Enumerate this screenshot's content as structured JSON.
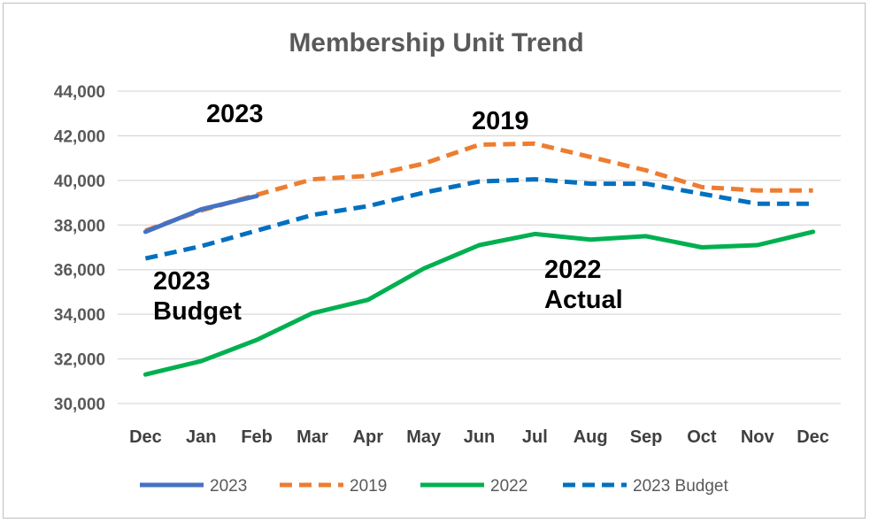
{
  "chart_data": {
    "type": "line",
    "title": "Membership Unit Trend",
    "xlabel": "",
    "ylabel": "",
    "ylim": [
      30000,
      44000
    ],
    "y_ticks": [
      "30,000",
      "32,000",
      "34,000",
      "36,000",
      "38,000",
      "40,000",
      "42,000",
      "44,000"
    ],
    "y_tick_values": [
      30000,
      32000,
      34000,
      36000,
      38000,
      40000,
      42000,
      44000
    ],
    "categories": [
      "Dec",
      "Jan",
      "Feb",
      "Mar",
      "Apr",
      "May",
      "Jun",
      "Jul",
      "Aug",
      "Sep",
      "Oct",
      "Nov",
      "Dec"
    ],
    "grid": true,
    "legend_position": "bottom",
    "series": [
      {
        "name": "2023",
        "color": "#4472C4",
        "dash": "solid",
        "values": [
          37700,
          38700,
          39300,
          null,
          null,
          null,
          null,
          null,
          null,
          null,
          null,
          null,
          null
        ]
      },
      {
        "name": "2019",
        "color": "#ED7D31",
        "dash": "dashed",
        "values": [
          37750,
          38650,
          39350,
          40050,
          40200,
          40750,
          41600,
          41650,
          41050,
          40450,
          39700,
          39550,
          39550
        ]
      },
      {
        "name": "2022",
        "color": "#00B050",
        "dash": "solid",
        "values": [
          31300,
          31900,
          32850,
          34050,
          34650,
          36050,
          37100,
          37600,
          37350,
          37500,
          37000,
          37100,
          37700
        ]
      },
      {
        "name": "2023 Budget",
        "color": "#0070C0",
        "dash": "dashed",
        "values": [
          36500,
          37050,
          37750,
          38450,
          38850,
          39450,
          39950,
          40050,
          39850,
          39850,
          39400,
          38950,
          38950
        ]
      }
    ],
    "annotations": [
      {
        "id": "2023",
        "lines": [
          "2023"
        ]
      },
      {
        "id": "2019",
        "lines": [
          "2019"
        ]
      },
      {
        "id": "2023-budget",
        "lines": [
          "2023",
          "Budget"
        ]
      },
      {
        "id": "2022-actual",
        "lines": [
          "2022",
          "Actual"
        ]
      }
    ]
  }
}
